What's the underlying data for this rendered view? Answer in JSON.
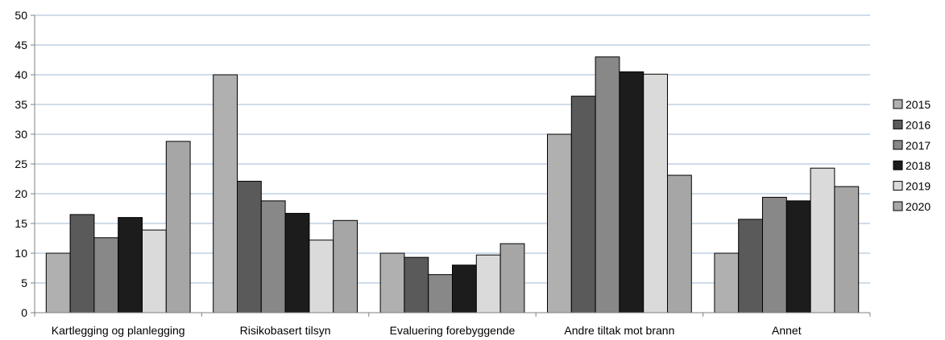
{
  "chart_data": {
    "type": "bar",
    "title": "",
    "xlabel": "",
    "ylabel": "",
    "ylim": [
      0,
      50
    ],
    "yticks": [
      0,
      5,
      10,
      15,
      20,
      25,
      30,
      35,
      40,
      45,
      50
    ],
    "grid": true,
    "legend_position": "right",
    "categories": [
      "Kartlegging og planlegging",
      "Risikobasert tilsyn",
      "Evaluering forebyggende",
      "Andre tiltak mot brann",
      "Annet"
    ],
    "series": [
      {
        "name": "2015",
        "color": "#b0b0b0",
        "values": [
          10,
          40,
          10,
          30,
          10
        ]
      },
      {
        "name": "2016",
        "color": "#5a5a5a",
        "values": [
          16.5,
          22.1,
          9.3,
          36.4,
          15.7
        ]
      },
      {
        "name": "2017",
        "color": "#888888",
        "values": [
          12.6,
          18.8,
          6.4,
          43,
          19.4
        ]
      },
      {
        "name": "2018",
        "color": "#1c1c1c",
        "values": [
          16,
          16.7,
          8,
          40.5,
          18.8
        ]
      },
      {
        "name": "2019",
        "color": "#dadada",
        "values": [
          13.9,
          12.2,
          9.7,
          40.1,
          24.3
        ]
      },
      {
        "name": "2020",
        "color": "#a6a6a6",
        "values": [
          28.8,
          15.5,
          11.6,
          23.1,
          21.2
        ]
      }
    ]
  }
}
